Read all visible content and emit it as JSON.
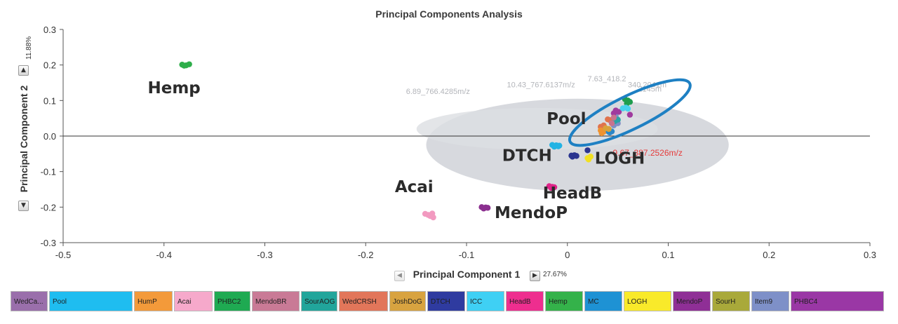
{
  "chart_data": {
    "type": "scatter",
    "title": "Principal Components Analysis",
    "xlabel": "Principal Component 1",
    "ylabel": "Principal Component 2",
    "x_variance": "27.67%",
    "y_variance": "11.88%",
    "xlim": [
      -0.5,
      0.3
    ],
    "ylim": [
      -0.3,
      0.3
    ],
    "x_ticks": [
      "-0.5",
      "-0.4",
      "-0.3",
      "-0.2",
      "-0.1",
      "0",
      "0.1",
      "0.2",
      "0.3"
    ],
    "y_ticks": [
      "0.3",
      "0.2",
      "0.1",
      "0.0",
      "-0.1",
      "-0.2",
      "-0.3"
    ],
    "highlight_feature": "9.67_387.2526m/z",
    "feature_labels": [
      "6.89_766.4285m/z",
      "10.43_767.6137m/z",
      "7.63_418.2",
      "340.2041m",
      "2145m"
    ],
    "group_labels": [
      {
        "text": "Hemp",
        "x": -0.39,
        "y": 0.12
      },
      {
        "text": "Pool",
        "x": -0.001,
        "y": 0.034
      },
      {
        "text": "DTCH",
        "x": -0.04,
        "y": -0.07
      },
      {
        "text": "LOGH",
        "x": 0.052,
        "y": -0.078
      },
      {
        "text": "HeadB",
        "x": 0.005,
        "y": -0.176
      },
      {
        "text": "Acai",
        "x": -0.152,
        "y": -0.158
      },
      {
        "text": "MendoP",
        "x": -0.036,
        "y": -0.231
      }
    ],
    "series": [
      {
        "name": "Hemp",
        "color": "#2eae4a",
        "points": [
          [
            -0.382,
            0.201
          ],
          [
            -0.378,
            0.199
          ],
          [
            -0.375,
            0.202
          ],
          [
            -0.38,
            0.198
          ]
        ]
      },
      {
        "name": "Acai",
        "color": "#f29ac0",
        "points": [
          [
            -0.141,
            -0.219
          ],
          [
            -0.134,
            -0.218
          ],
          [
            -0.138,
            -0.222
          ],
          [
            -0.133,
            -0.229
          ],
          [
            -0.136,
            -0.225
          ]
        ]
      },
      {
        "name": "MendoP",
        "color": "#8b2f8f",
        "points": [
          [
            -0.085,
            -0.2
          ],
          [
            -0.081,
            -0.201
          ],
          [
            -0.083,
            -0.204
          ],
          [
            -0.079,
            -0.202
          ]
        ]
      },
      {
        "name": "HeadB",
        "color": "#e0248a",
        "points": [
          [
            -0.018,
            -0.141
          ],
          [
            -0.015,
            -0.143
          ],
          [
            -0.016,
            -0.146
          ],
          [
            -0.013,
            -0.144
          ]
        ]
      },
      {
        "name": "Pool",
        "color": "#22b3e4",
        "points": [
          [
            -0.015,
            -0.025
          ],
          [
            -0.011,
            -0.026
          ],
          [
            -0.008,
            -0.027
          ],
          [
            -0.013,
            -0.03
          ],
          [
            -0.009,
            -0.029
          ]
        ]
      },
      {
        "name": "DTCH",
        "color": "#2b3590",
        "points": [
          [
            0.004,
            -0.055
          ],
          [
            0.007,
            -0.054
          ],
          [
            0.005,
            -0.058
          ],
          [
            0.009,
            -0.056
          ],
          [
            0.02,
            -0.04
          ]
        ]
      },
      {
        "name": "LOGH",
        "color": "#f2e021",
        "points": [
          [
            0.02,
            -0.062
          ],
          [
            0.023,
            -0.058
          ],
          [
            0.021,
            -0.066
          ]
        ]
      },
      {
        "name": "WedCRSH",
        "color": "#e0734d",
        "points": [
          [
            0.033,
            0.026
          ],
          [
            0.036,
            0.03
          ],
          [
            0.04,
            0.047
          ],
          [
            0.042,
            0.045
          ]
        ]
      },
      {
        "name": "HumP",
        "color": "#f0932f",
        "points": [
          [
            0.033,
            0.016
          ],
          [
            0.036,
            0.012
          ],
          [
            0.034,
            0.008
          ]
        ]
      },
      {
        "name": "Item9",
        "color": "#7f8fc5",
        "points": [
          [
            0.046,
            0.03
          ],
          [
            0.05,
            0.036
          ],
          [
            0.048,
            0.055
          ]
        ]
      },
      {
        "name": "PHBC4",
        "color": "#9f3a9e",
        "points": [
          [
            0.048,
            0.072
          ],
          [
            0.051,
            0.068
          ],
          [
            0.062,
            0.06
          ],
          [
            0.046,
            0.064
          ]
        ]
      },
      {
        "name": "PHBC2",
        "color": "#1f9d4e",
        "points": [
          [
            0.057,
            0.104
          ],
          [
            0.06,
            0.1
          ],
          [
            0.059,
            0.092
          ],
          [
            0.062,
            0.096
          ]
        ]
      },
      {
        "name": "ICC",
        "color": "#49d2ef",
        "points": [
          [
            0.055,
            0.078
          ],
          [
            0.058,
            0.08
          ],
          [
            0.06,
            0.077
          ]
        ]
      },
      {
        "name": "MC",
        "color": "#2a87c9",
        "points": [
          [
            0.041,
            0.012
          ],
          [
            0.044,
            0.013
          ],
          [
            0.042,
            0.01
          ]
        ]
      },
      {
        "name": "SourAOG",
        "color": "#2aa3a6",
        "points": [
          [
            0.047,
            0.042
          ],
          [
            0.05,
            0.046
          ]
        ]
      },
      {
        "name": "JoshDoG",
        "color": "#d9a23b",
        "points": [
          [
            0.038,
            0.022
          ],
          [
            0.041,
            0.02
          ]
        ]
      },
      {
        "name": "MendoBR",
        "color": "#c8738e",
        "points": [
          [
            0.044,
            0.036
          ],
          [
            0.046,
            0.052
          ]
        ]
      }
    ],
    "highlight_ellipse": {
      "cx": 0.062,
      "cy": 0.066,
      "rx": 0.066,
      "ry": 0.047,
      "angle_deg": -26,
      "color": "#1e80c3"
    }
  },
  "legend": [
    {
      "label": "WedCa...",
      "color": "#9a6fab"
    },
    {
      "label": "Pool",
      "color": "#1fbdf0"
    },
    {
      "label": "HumP",
      "color": "#f39a3a"
    },
    {
      "label": "Acai",
      "color": "#f6a9cb"
    },
    {
      "label": "PHBC2",
      "color": "#1faa52"
    },
    {
      "label": "MendoBR",
      "color": "#c97a96"
    },
    {
      "label": "SourAOG",
      "color": "#21a59b"
    },
    {
      "label": "WedCRSH",
      "color": "#e2765a"
    },
    {
      "label": "JoshDoG",
      "color": "#d8a340"
    },
    {
      "label": "DTCH",
      "color": "#2f3ba0"
    },
    {
      "label": "ICC",
      "color": "#3fd0f4"
    },
    {
      "label": "HeadB",
      "color": "#ee2e8f"
    },
    {
      "label": "Hemp",
      "color": "#34b24a"
    },
    {
      "label": "MC",
      "color": "#1e92d4"
    },
    {
      "label": "LOGH",
      "color": "#f9ea2a"
    },
    {
      "label": "MendoP",
      "color": "#8f2f96"
    },
    {
      "label": "SourH",
      "color": "#a9a93a"
    },
    {
      "label": "Item9",
      "color": "#7e90c8"
    },
    {
      "label": "PHBC4",
      "color": "#9a37a5"
    }
  ]
}
